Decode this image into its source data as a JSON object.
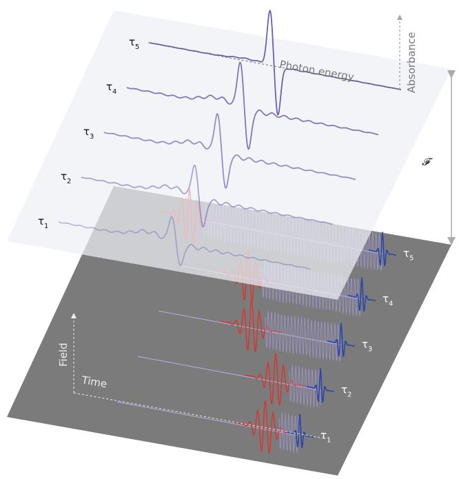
{
  "upper_plane": {
    "axis_x": "Photon energy",
    "axis_y": "Absorbance",
    "labels": [
      {
        "symbol": "τ",
        "sub": "1"
      },
      {
        "symbol": "τ",
        "sub": "2"
      },
      {
        "symbol": "τ",
        "sub": "3"
      },
      {
        "symbol": "τ",
        "sub": "4"
      },
      {
        "symbol": "τ",
        "sub": "5"
      }
    ]
  },
  "lower_plane": {
    "axis_x": "Time",
    "axis_y": "Field",
    "labels": [
      {
        "symbol": "τ",
        "sub": "1"
      },
      {
        "symbol": "τ",
        "sub": "2"
      },
      {
        "symbol": "τ",
        "sub": "3"
      },
      {
        "symbol": "τ",
        "sub": "4"
      },
      {
        "symbol": "τ",
        "sub": "5"
      }
    ]
  },
  "transform_label": "𝓕"
}
